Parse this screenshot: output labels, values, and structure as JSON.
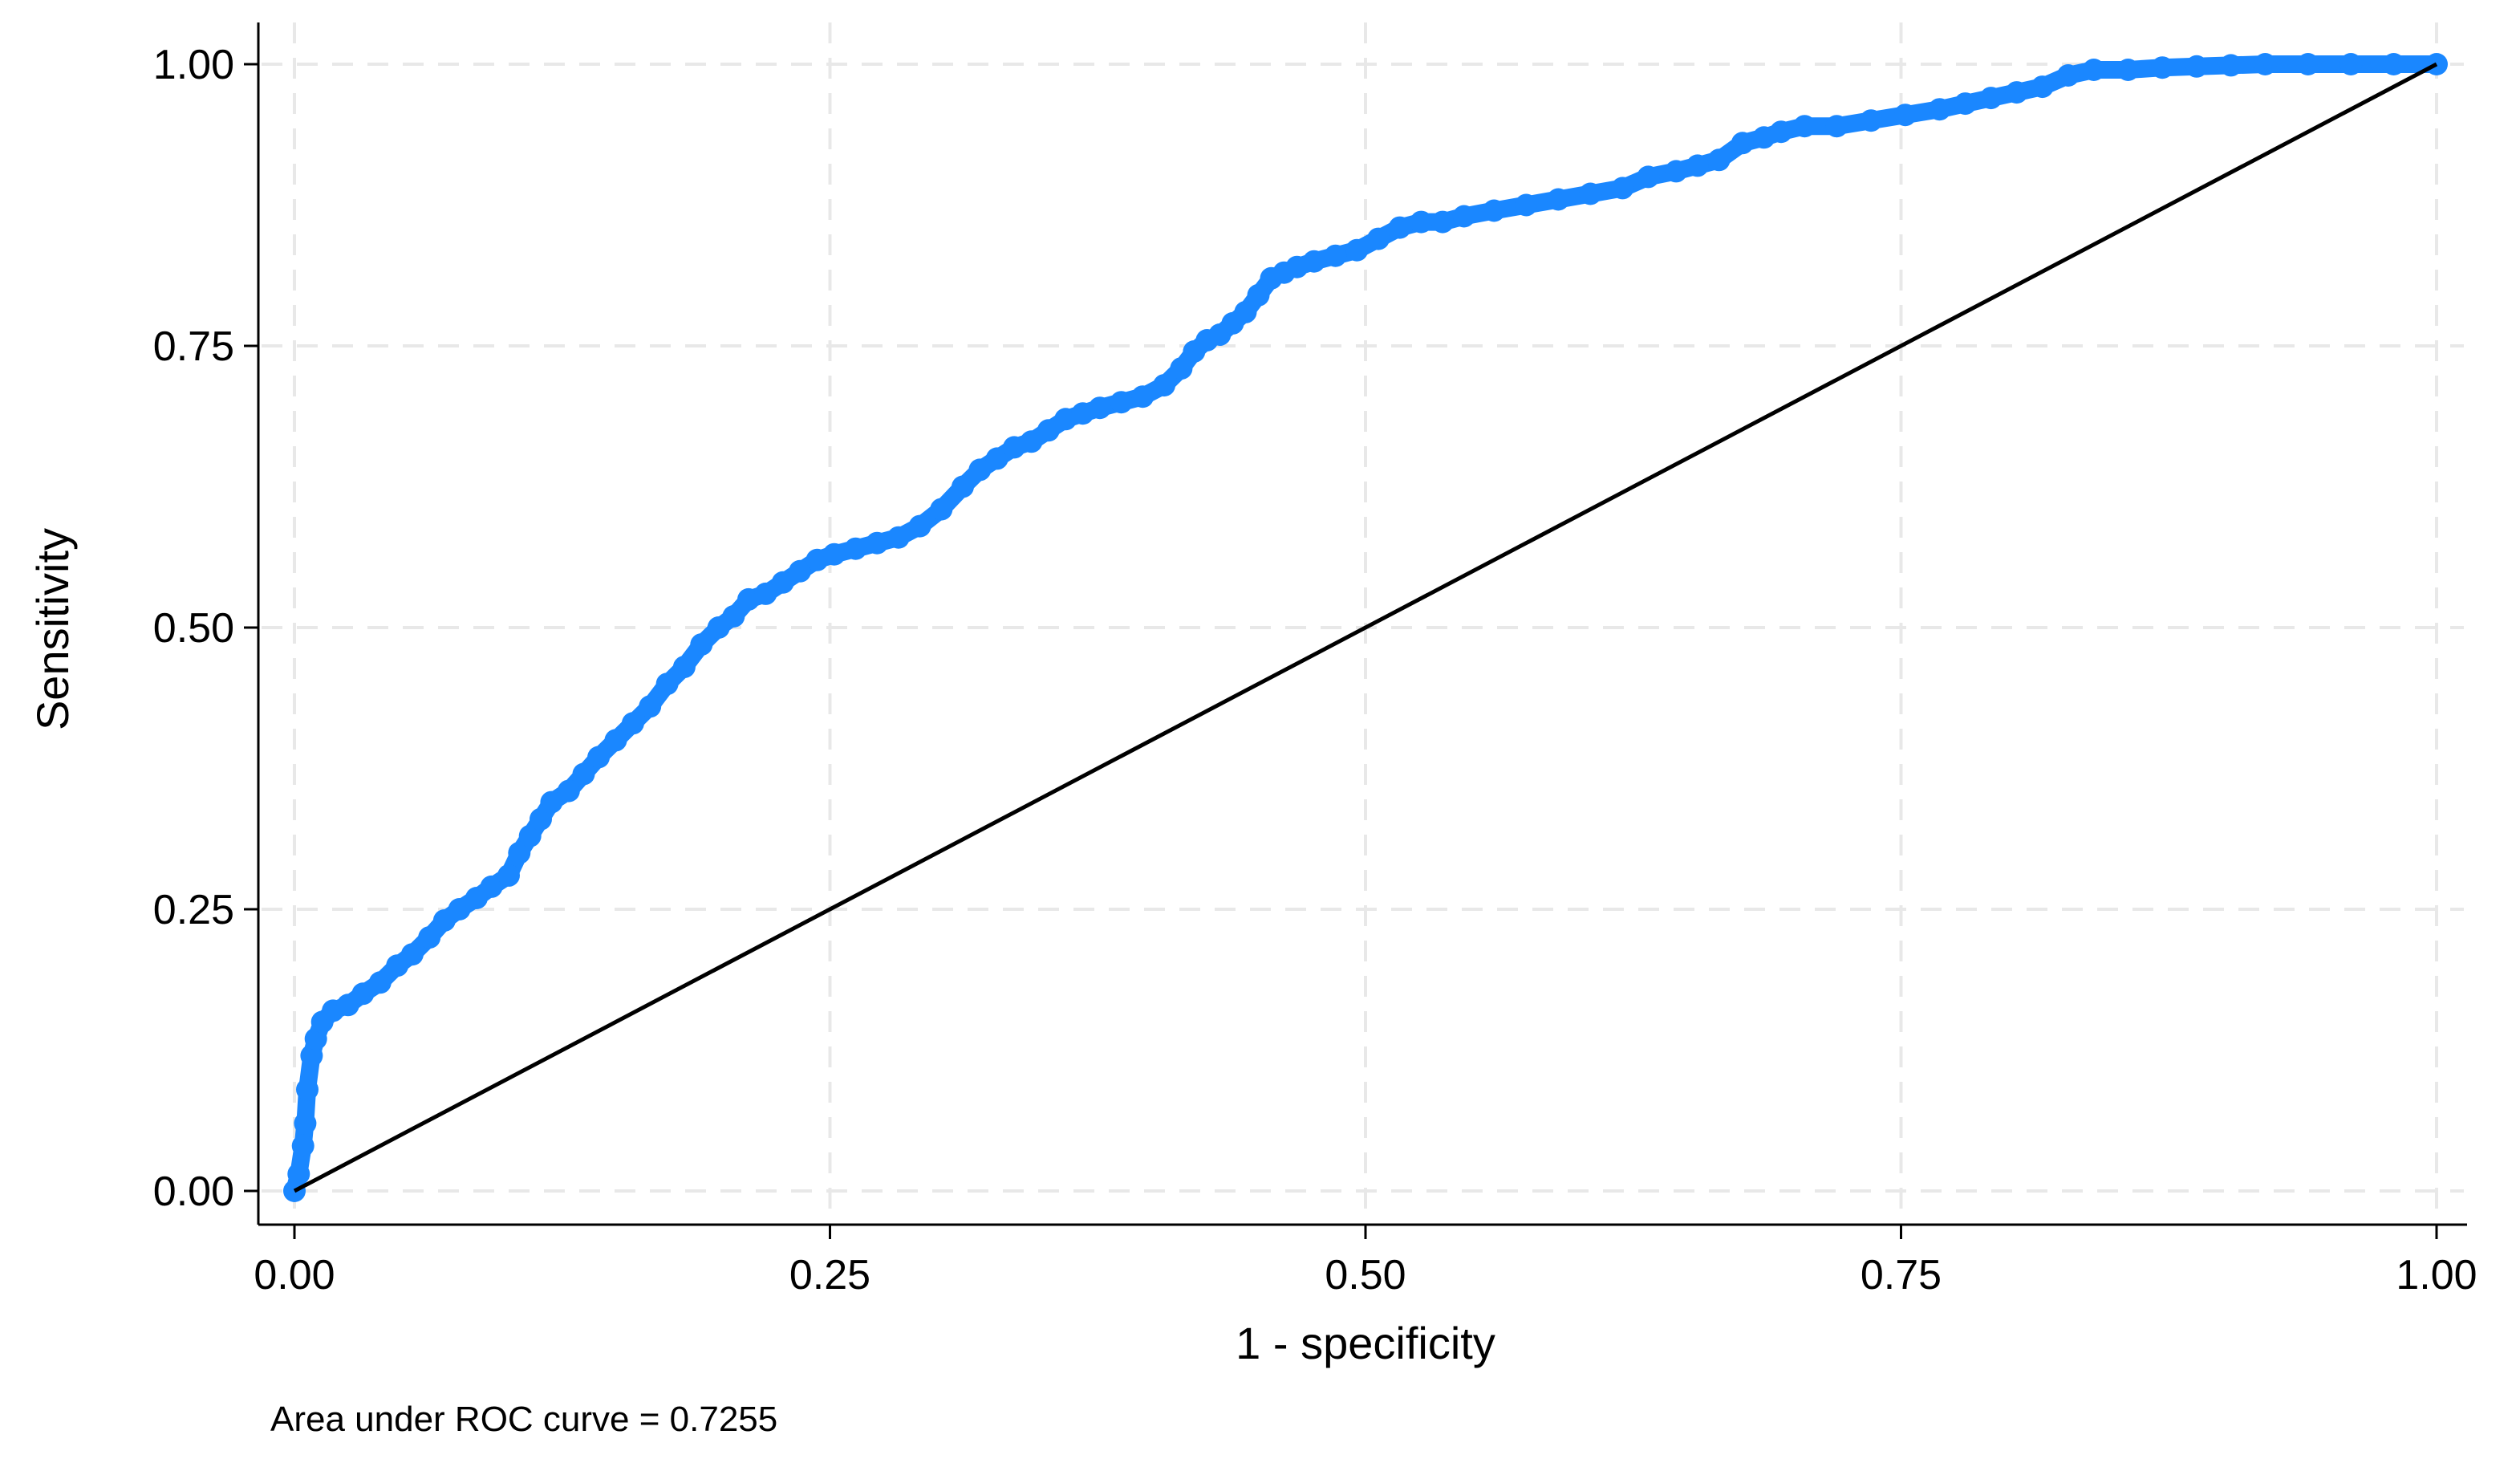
{
  "chart_data": {
    "type": "line",
    "title": "",
    "xlabel": "1 - specificity",
    "ylabel": "Sensitivity",
    "xlim": [
      0,
      1
    ],
    "ylim": [
      0,
      1
    ],
    "xticks": [
      "0.00",
      "0.25",
      "0.50",
      "0.75",
      "1.00"
    ],
    "yticks": [
      "0.00",
      "0.25",
      "0.50",
      "0.75",
      "1.00"
    ],
    "grid": true,
    "note": "Area under ROC curve = 0.7255",
    "series": [
      {
        "color": "#1a87ff",
        "markers": true,
        "x": [
          0,
          0.002,
          0.004,
          0.005,
          0.006,
          0.008,
          0.01,
          0.013,
          0.018,
          0.025,
          0.032,
          0.04,
          0.048,
          0.055,
          0.063,
          0.07,
          0.077,
          0.085,
          0.092,
          0.1,
          0.105,
          0.11,
          0.115,
          0.12,
          0.128,
          0.135,
          0.142,
          0.15,
          0.158,
          0.166,
          0.174,
          0.182,
          0.19,
          0.198,
          0.205,
          0.212,
          0.22,
          0.228,
          0.236,
          0.244,
          0.252,
          0.262,
          0.272,
          0.282,
          0.292,
          0.302,
          0.312,
          0.32,
          0.328,
          0.336,
          0.344,
          0.352,
          0.36,
          0.368,
          0.376,
          0.386,
          0.396,
          0.406,
          0.414,
          0.42,
          0.426,
          0.432,
          0.438,
          0.444,
          0.45,
          0.456,
          0.462,
          0.468,
          0.476,
          0.486,
          0.496,
          0.506,
          0.516,
          0.526,
          0.536,
          0.546,
          0.56,
          0.575,
          0.59,
          0.605,
          0.62,
          0.632,
          0.645,
          0.655,
          0.665,
          0.676,
          0.686,
          0.694,
          0.705,
          0.72,
          0.736,
          0.752,
          0.768,
          0.78,
          0.792,
          0.804,
          0.816,
          0.828,
          0.84,
          0.856,
          0.872,
          0.888,
          0.904,
          0.92,
          0.94,
          0.96,
          0.98,
          1.0
        ],
        "y": [
          0,
          0.015,
          0.04,
          0.06,
          0.09,
          0.12,
          0.135,
          0.15,
          0.16,
          0.165,
          0.175,
          0.185,
          0.2,
          0.21,
          0.225,
          0.24,
          0.25,
          0.26,
          0.27,
          0.28,
          0.3,
          0.315,
          0.33,
          0.345,
          0.355,
          0.37,
          0.385,
          0.4,
          0.415,
          0.43,
          0.45,
          0.465,
          0.485,
          0.5,
          0.51,
          0.525,
          0.53,
          0.54,
          0.55,
          0.56,
          0.565,
          0.57,
          0.575,
          0.58,
          0.59,
          0.605,
          0.625,
          0.64,
          0.65,
          0.66,
          0.665,
          0.675,
          0.685,
          0.69,
          0.695,
          0.7,
          0.705,
          0.715,
          0.73,
          0.745,
          0.755,
          0.76,
          0.77,
          0.78,
          0.795,
          0.81,
          0.815,
          0.82,
          0.825,
          0.83,
          0.835,
          0.845,
          0.855,
          0.86,
          0.86,
          0.865,
          0.87,
          0.875,
          0.88,
          0.885,
          0.89,
          0.9,
          0.905,
          0.91,
          0.915,
          0.93,
          0.935,
          0.94,
          0.945,
          0.945,
          0.95,
          0.955,
          0.96,
          0.965,
          0.97,
          0.975,
          0.98,
          0.99,
          0.995,
          0.995,
          0.997,
          0.998,
          0.999,
          1.0,
          1.0,
          1.0,
          1.0,
          1.0
        ]
      },
      {
        "color": "#000000",
        "markers": false,
        "x": [
          0,
          1
        ],
        "y": [
          0,
          1
        ]
      }
    ]
  }
}
